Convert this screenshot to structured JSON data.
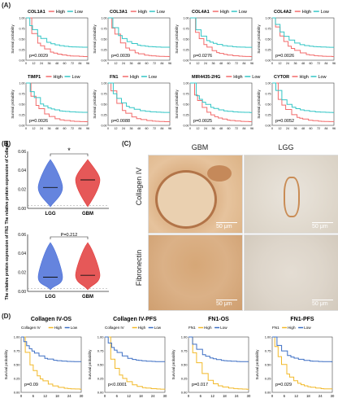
{
  "panels": {
    "A": "(A)",
    "B": "(B)",
    "C": "(C)",
    "D": "(D)"
  },
  "legend": {
    "high": "High",
    "low": "Low"
  },
  "colors": {
    "high": "#f26b6b",
    "low": "#33c6c6",
    "yellow": "#f2b928",
    "blue": "#3d6fc4",
    "violet_lgg": "#4a6fd8",
    "violet_gbm": "#e23b3b"
  },
  "axis_A": {
    "ylabel": "Survival probability",
    "xticks": [
      "0",
      "12",
      "24",
      "36",
      "48",
      "60",
      "72",
      "84",
      "96"
    ],
    "yticks": [
      "0.00",
      "0.25",
      "0.50",
      "0.75",
      "1.00"
    ]
  },
  "km_A": [
    {
      "gene": "COL1A1",
      "p": "p=0.0029",
      "drop_high": 22,
      "drop_low": 38
    },
    {
      "gene": "COL3A1",
      "p": "p=0.0039",
      "drop_high": 24,
      "drop_low": 44
    },
    {
      "gene": "COL4A1",
      "p": "p=0.0276",
      "drop_high": 22,
      "drop_low": 34
    },
    {
      "gene": "COL4A2",
      "p": "p=0.0026",
      "drop_high": 20,
      "drop_low": 36
    },
    {
      "gene": "TIMP1",
      "p": "p=0.0026",
      "drop_high": 20,
      "drop_low": 36
    },
    {
      "gene": "FN1",
      "p": "p=0.0088",
      "drop_high": 22,
      "drop_low": 40
    },
    {
      "gene": "MIR4435-2HG",
      "p": "p=0.0025",
      "drop_high": 22,
      "drop_low": 36
    },
    {
      "gene": "CYTOR",
      "p": "p=0.0052",
      "drop_high": 20,
      "drop_low": 32
    }
  ],
  "violin_B": [
    {
      "ylabel": "The relative protein expression of Collagen IV",
      "sig": "*",
      "categories": [
        "LGG",
        "GBM"
      ],
      "medians": [
        0.022,
        0.03
      ],
      "yticks": [
        "0.00",
        "0.02",
        "0.04",
        "0.06"
      ],
      "ylim": [
        0,
        0.06
      ]
    },
    {
      "ylabel": "The relative protein expression of FN1",
      "sig": "P=0.212",
      "categories": [
        "LGG",
        "GBM"
      ],
      "medians": [
        0.015,
        0.017
      ],
      "yticks": [
        "0.00",
        "0.02",
        "0.04",
        "0.06"
      ],
      "ylim": [
        0,
        0.06
      ]
    }
  ],
  "micro_C": {
    "col_gbm": "GBM",
    "col_lgg": "LGG",
    "row1": "Collagen IV",
    "row2": "Fibronectin",
    "scale": "50 μm"
  },
  "axis_D": {
    "ylabel": "Survival probability",
    "xticks": [
      "0",
      "6",
      "12",
      "18",
      "24",
      "30"
    ],
    "yticks": [
      "0.00",
      "0.25",
      "0.50",
      "0.75",
      "1.00"
    ]
  },
  "km_D": [
    {
      "title": "Collagen IV-OS",
      "legend_label": "Collagen IV",
      "p": "p=0.09"
    },
    {
      "title": "Collagen IV-PFS",
      "legend_label": "Collagen IV",
      "p": "p<0.0001"
    },
    {
      "title": "FN1-OS",
      "legend_label": "FN1",
      "p": "p=0.017"
    },
    {
      "title": "FN1-PFS",
      "legend_label": "FN1",
      "p": "p=0.029"
    }
  ]
}
